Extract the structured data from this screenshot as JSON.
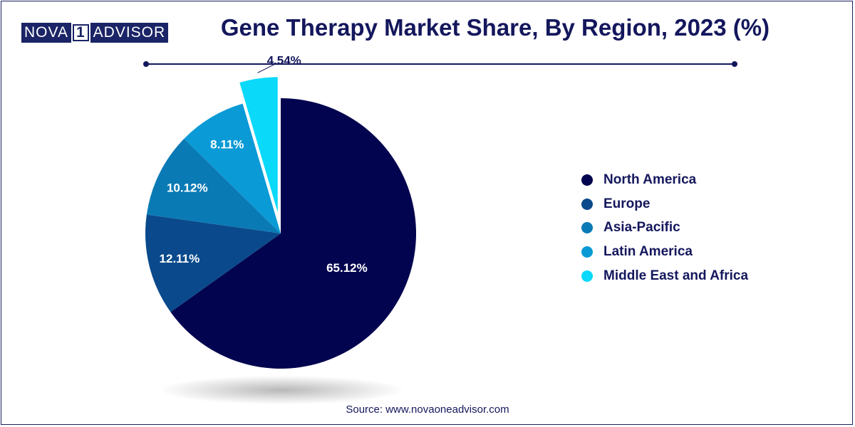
{
  "brand": {
    "left": "NOVA",
    "middle": "1",
    "right": "ADVISOR"
  },
  "title": "Gene Therapy Market Share, By Region, 2023 (%)",
  "source": "Source: www.novaoneadvisor.com",
  "colors": {
    "North America": "#03044f",
    "Europe": "#0a4a8c",
    "Asia-Pacific": "#0a7ab5",
    "Latin America": "#0a9ad6",
    "Middle East and Africa": "#0ad9fa"
  },
  "chart_data": {
    "type": "pie",
    "title": "Gene Therapy Market Share, By Region, 2023 (%)",
    "categories": [
      "North America",
      "Europe",
      "Asia-Pacific",
      "Latin America",
      "Middle East and Africa"
    ],
    "values": [
      65.12,
      12.11,
      10.12,
      8.11,
      4.54
    ],
    "labels": [
      "65.12%",
      "12.11%",
      "10.12%",
      "8.11%",
      "4.54%"
    ],
    "legend_position": "right",
    "start": "12 o'clock, clockwise",
    "exploded": [
      "Middle East and Africa"
    ]
  }
}
